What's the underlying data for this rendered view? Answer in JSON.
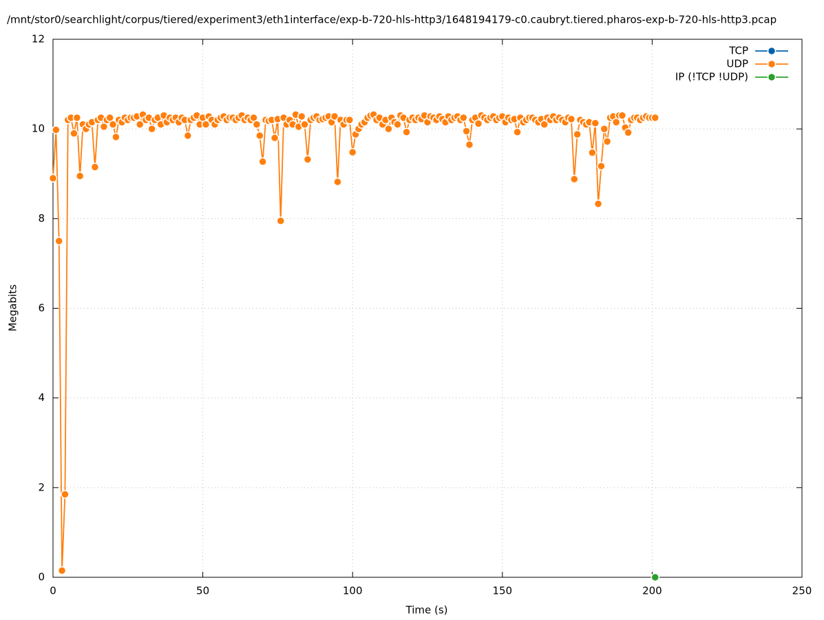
{
  "chart_data": {
    "type": "line",
    "title": "/mnt/stor0/searchlight/corpus/tiered/experiment3/eth1interface/exp-b-720-hls-http3/1648194179-c0.caubryt.tiered.pharos-exp-b-720-hls-http3.pcap",
    "xlabel": "Time (s)",
    "ylabel": "Megabits",
    "xlim": [
      0,
      250
    ],
    "xticks": [
      0,
      50,
      100,
      150,
      200,
      250
    ],
    "ylim": [
      0,
      12
    ],
    "yticks": [
      0,
      2,
      4,
      6,
      8,
      10,
      12
    ],
    "grid": true,
    "legend": "top-right",
    "series": [
      {
        "name": "TCP",
        "color": "#0060ad",
        "x": [],
        "values": []
      },
      {
        "name": "UDP",
        "color": "#ff7f0e",
        "x": [
          0,
          1,
          2,
          3,
          4,
          5,
          6,
          7,
          8,
          9,
          10,
          11,
          12,
          13,
          14,
          15,
          16,
          17,
          18,
          19,
          20,
          21,
          22,
          23,
          24,
          25,
          26,
          27,
          28,
          29,
          30,
          31,
          32,
          33,
          34,
          35,
          36,
          37,
          38,
          39,
          40,
          41,
          42,
          43,
          44,
          45,
          46,
          47,
          48,
          49,
          50,
          51,
          52,
          53,
          54,
          55,
          56,
          57,
          58,
          59,
          60,
          61,
          62,
          63,
          64,
          65,
          66,
          67,
          68,
          69,
          70,
          71,
          72,
          73,
          74,
          75,
          76,
          77,
          78,
          79,
          80,
          81,
          82,
          83,
          84,
          85,
          86,
          87,
          88,
          89,
          90,
          91,
          92,
          93,
          94,
          95,
          96,
          97,
          98,
          99,
          100,
          101,
          102,
          103,
          104,
          105,
          106,
          107,
          108,
          109,
          110,
          111,
          112,
          113,
          114,
          115,
          116,
          117,
          118,
          119,
          120,
          121,
          122,
          123,
          124,
          125,
          126,
          127,
          128,
          129,
          130,
          131,
          132,
          133,
          134,
          135,
          136,
          137,
          138,
          139,
          140,
          141,
          142,
          143,
          144,
          145,
          146,
          147,
          148,
          149,
          150,
          151,
          152,
          153,
          154,
          155,
          156,
          157,
          158,
          159,
          160,
          161,
          162,
          163,
          164,
          165,
          166,
          167,
          168,
          169,
          170,
          171,
          172,
          173,
          174,
          175,
          176,
          177,
          178,
          179,
          180,
          181,
          182,
          183,
          184,
          185,
          186,
          187,
          188,
          189,
          190,
          191,
          192,
          193,
          194,
          195,
          196,
          197,
          198,
          199,
          200,
          201
        ],
        "values": [
          8.9,
          9.98,
          7.5,
          0.15,
          1.85,
          10.2,
          10.25,
          9.9,
          10.25,
          8.95,
          10.1,
          10.0,
          10.1,
          10.15,
          9.15,
          10.2,
          10.25,
          10.05,
          10.2,
          10.25,
          10.1,
          9.82,
          10.2,
          10.15,
          10.25,
          10.2,
          10.25,
          10.25,
          10.28,
          10.1,
          10.32,
          10.2,
          10.25,
          10.0,
          10.2,
          10.25,
          10.1,
          10.3,
          10.15,
          10.25,
          10.2,
          10.25,
          10.15,
          10.25,
          10.2,
          9.85,
          10.2,
          10.25,
          10.3,
          10.1,
          10.25,
          10.1,
          10.28,
          10.2,
          10.1,
          10.2,
          10.25,
          10.28,
          10.2,
          10.25,
          10.25,
          10.2,
          10.25,
          10.3,
          10.2,
          10.25,
          10.2,
          10.25,
          10.1,
          9.85,
          9.27,
          10.2,
          10.18,
          10.2,
          9.8,
          10.22,
          7.95,
          10.25,
          10.1,
          10.2,
          10.1,
          10.32,
          10.05,
          10.28,
          10.1,
          9.32,
          10.2,
          10.25,
          10.28,
          10.2,
          10.22,
          10.25,
          10.28,
          10.15,
          10.28,
          8.82,
          10.2,
          10.1,
          10.2,
          10.2,
          9.48,
          9.88,
          10.0,
          10.1,
          10.15,
          10.25,
          10.3,
          10.32,
          10.2,
          10.25,
          10.1,
          10.2,
          10.0,
          10.25,
          10.15,
          10.1,
          10.3,
          10.25,
          9.93,
          10.2,
          10.25,
          10.2,
          10.25,
          10.22,
          10.3,
          10.15,
          10.28,
          10.25,
          10.2,
          10.28,
          10.22,
          10.15,
          10.28,
          10.2,
          10.25,
          10.28,
          10.2,
          10.25,
          9.95,
          9.65,
          10.2,
          10.25,
          10.12,
          10.3,
          10.25,
          10.2,
          10.25,
          10.28,
          10.2,
          10.25,
          10.28,
          10.15,
          10.25,
          10.2,
          10.22,
          9.93,
          10.25,
          10.15,
          10.2,
          10.25,
          10.25,
          10.2,
          10.15,
          10.22,
          10.1,
          10.25,
          10.2,
          10.28,
          10.2,
          10.25,
          10.2,
          10.15,
          10.25,
          10.22,
          8.88,
          9.88,
          10.2,
          10.15,
          10.1,
          10.15,
          9.47,
          10.13,
          8.33,
          9.17,
          10.0,
          9.72,
          10.25,
          10.28,
          10.15,
          10.3,
          10.3,
          10.03,
          9.92,
          10.2,
          10.25,
          10.25,
          10.2,
          10.25,
          10.28,
          10.25,
          10.25,
          10.25
        ]
      },
      {
        "name": "IP (!TCP  !UDP)",
        "color": "#2ca02c",
        "x": [
          201
        ],
        "values": [
          0
        ]
      }
    ]
  }
}
